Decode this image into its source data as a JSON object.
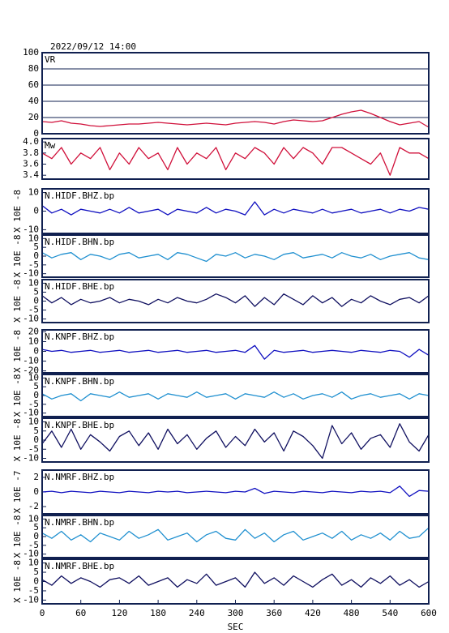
{
  "chart_data": [
    {
      "type": "line",
      "title": "2022/09/12 14:00",
      "label": "VR",
      "grid": true,
      "x": [
        0,
        15,
        30,
        45,
        60,
        75,
        90,
        105,
        120,
        135,
        150,
        165,
        180,
        195,
        210,
        225,
        240,
        255,
        270,
        285,
        300,
        315,
        330,
        345,
        360,
        375,
        390,
        405,
        420,
        435,
        450,
        465,
        480,
        495,
        510,
        525,
        540,
        555,
        570,
        585,
        600
      ],
      "series": [
        {
          "color": "#d0103a",
          "values": [
            15,
            14,
            16,
            13,
            12,
            10,
            9,
            10,
            11,
            12,
            12,
            13,
            14,
            13,
            12,
            11,
            12,
            13,
            12,
            11,
            13,
            14,
            15,
            14,
            12,
            15,
            17,
            16,
            15,
            16,
            20,
            24,
            27,
            29,
            25,
            20,
            15,
            11,
            13,
            15,
            8
          ]
        }
      ],
      "xlim": [
        0,
        600
      ],
      "ylim": [
        0,
        100
      ],
      "yticks": [
        0,
        20,
        40,
        60,
        80,
        100
      ]
    },
    {
      "type": "line",
      "label": "Mw",
      "x": [
        0,
        15,
        30,
        45,
        60,
        75,
        90,
        105,
        120,
        135,
        150,
        165,
        180,
        195,
        210,
        225,
        240,
        255,
        270,
        285,
        300,
        315,
        330,
        345,
        360,
        375,
        390,
        405,
        420,
        435,
        450,
        465,
        480,
        495,
        510,
        525,
        540,
        555,
        570,
        585,
        600
      ],
      "series": [
        {
          "color": "#d0103a",
          "values": [
            3.8,
            3.7,
            3.9,
            3.6,
            3.8,
            3.7,
            3.9,
            3.5,
            3.8,
            3.6,
            3.9,
            3.7,
            3.8,
            3.5,
            3.9,
            3.6,
            3.8,
            3.7,
            3.9,
            3.5,
            3.8,
            3.7,
            3.9,
            3.8,
            3.6,
            3.9,
            3.7,
            3.9,
            3.8,
            3.6,
            3.9,
            3.9,
            3.8,
            3.7,
            3.6,
            3.8,
            3.4,
            3.9,
            3.8,
            3.8,
            3.7
          ]
        }
      ],
      "xlim": [
        0,
        600
      ],
      "ylim": [
        3.33,
        4.06
      ],
      "yticks": [
        3.4,
        3.6,
        3.8,
        {
          "value": 4,
          "label": "4.0"
        }
      ]
    },
    {
      "type": "line",
      "label": "N.HIDF.BHZ.bp",
      "ylabel": "X 10E -8",
      "x": [
        0,
        15,
        30,
        45,
        60,
        75,
        90,
        105,
        120,
        135,
        150,
        165,
        180,
        195,
        210,
        225,
        240,
        255,
        270,
        285,
        300,
        315,
        330,
        345,
        360,
        375,
        390,
        405,
        420,
        435,
        450,
        465,
        480,
        495,
        510,
        525,
        540,
        555,
        570,
        585,
        600
      ],
      "series": [
        {
          "color": "#1010c0",
          "values": [
            3,
            -1,
            1,
            -2,
            1,
            0,
            -1,
            1,
            -1,
            2,
            -1,
            0,
            1,
            -2,
            1,
            0,
            -1,
            2,
            -1,
            1,
            0,
            -2,
            5,
            -2,
            1,
            -1,
            1,
            0,
            -1,
            1,
            -1,
            0,
            1,
            -1,
            0,
            1,
            -1,
            1,
            0,
            2,
            1
          ]
        }
      ],
      "xlim": [
        0,
        600
      ],
      "ylim": [
        -12,
        12
      ],
      "yticks": [
        -10,
        0,
        10
      ]
    },
    {
      "type": "line",
      "label": "N.HIDF.BHN.bp",
      "ylabel": "X 10E -8",
      "x": [
        0,
        15,
        30,
        45,
        60,
        75,
        90,
        105,
        120,
        135,
        150,
        165,
        180,
        195,
        210,
        225,
        240,
        255,
        270,
        285,
        300,
        315,
        330,
        345,
        360,
        375,
        390,
        405,
        420,
        435,
        450,
        465,
        480,
        495,
        510,
        525,
        540,
        555,
        570,
        585,
        600
      ],
      "series": [
        {
          "color": "#2090d0",
          "values": [
            2,
            -1,
            1,
            2,
            -2,
            1,
            0,
            -2,
            1,
            2,
            -1,
            0,
            1,
            -2,
            2,
            1,
            -1,
            -3,
            1,
            0,
            2,
            -1,
            1,
            0,
            -2,
            1,
            2,
            -1,
            0,
            1,
            -1,
            2,
            0,
            -1,
            1,
            -2,
            0,
            1,
            2,
            -1,
            -2
          ]
        }
      ],
      "xlim": [
        0,
        600
      ],
      "ylim": [
        -12,
        12
      ],
      "yticks": [
        -10,
        -5,
        0,
        5,
        10
      ]
    },
    {
      "type": "line",
      "label": "N.HIDF.BHE.bp",
      "ylabel": "X 10E -8",
      "x": [
        0,
        15,
        30,
        45,
        60,
        75,
        90,
        105,
        120,
        135,
        150,
        165,
        180,
        195,
        210,
        225,
        240,
        255,
        270,
        285,
        300,
        315,
        330,
        345,
        360,
        375,
        390,
        405,
        420,
        435,
        450,
        465,
        480,
        495,
        510,
        525,
        540,
        555,
        570,
        585,
        600
      ],
      "series": [
        {
          "color": "#101060",
          "values": [
            3,
            -1,
            2,
            -2,
            1,
            -1,
            0,
            2,
            -1,
            1,
            0,
            -2,
            1,
            -1,
            2,
            0,
            -1,
            1,
            4,
            2,
            -1,
            3,
            -3,
            2,
            -2,
            4,
            1,
            -2,
            3,
            -1,
            2,
            -3,
            1,
            -1,
            3,
            0,
            -2,
            1,
            2,
            -1,
            3
          ]
        }
      ],
      "xlim": [
        0,
        600
      ],
      "ylim": [
        -12,
        12
      ],
      "yticks": [
        -10,
        -5,
        0,
        5,
        10
      ]
    },
    {
      "type": "line",
      "label": "N.KNPF.BHZ.bp",
      "ylabel": "X 10E -8",
      "x": [
        0,
        15,
        30,
        45,
        60,
        75,
        90,
        105,
        120,
        135,
        150,
        165,
        180,
        195,
        210,
        225,
        240,
        255,
        270,
        285,
        300,
        315,
        330,
        345,
        360,
        375,
        390,
        405,
        420,
        435,
        450,
        465,
        480,
        495,
        510,
        525,
        540,
        555,
        570,
        585,
        600
      ],
      "series": [
        {
          "color": "#1010c0",
          "values": [
            2,
            0,
            1,
            -1,
            0,
            1,
            -1,
            0,
            1,
            -1,
            0,
            1,
            -1,
            0,
            1,
            -1,
            0,
            1,
            -1,
            0,
            1,
            -1,
            6,
            -8,
            1,
            -1,
            0,
            1,
            -1,
            0,
            1,
            0,
            -1,
            1,
            0,
            -1,
            1,
            0,
            -6,
            2,
            -4
          ]
        }
      ],
      "xlim": [
        0,
        600
      ],
      "ylim": [
        -22,
        22
      ],
      "yticks": [
        -20,
        -10,
        0,
        10,
        20
      ]
    },
    {
      "type": "line",
      "label": "N.KNPF.BHN.bp",
      "ylabel": "X 10E -8",
      "x": [
        0,
        15,
        30,
        45,
        60,
        75,
        90,
        105,
        120,
        135,
        150,
        165,
        180,
        195,
        210,
        225,
        240,
        255,
        270,
        285,
        300,
        315,
        330,
        345,
        360,
        375,
        390,
        405,
        420,
        435,
        450,
        465,
        480,
        495,
        510,
        525,
        540,
        555,
        570,
        585,
        600
      ],
      "series": [
        {
          "color": "#2090d0",
          "values": [
            1,
            -2,
            0,
            1,
            -3,
            1,
            0,
            -1,
            2,
            -1,
            0,
            1,
            -2,
            1,
            0,
            -1,
            2,
            -1,
            0,
            1,
            -2,
            1,
            0,
            -1,
            2,
            -1,
            1,
            -2,
            0,
            1,
            -1,
            2,
            -2,
            0,
            1,
            -1,
            0,
            1,
            -2,
            1,
            0
          ]
        }
      ],
      "xlim": [
        0,
        600
      ],
      "ylim": [
        -12,
        12
      ],
      "yticks": [
        -10,
        -5,
        0,
        5,
        10
      ]
    },
    {
      "type": "line",
      "label": "N.KNPF.BHE.bp",
      "ylabel": "X 10E -8",
      "x": [
        0,
        15,
        30,
        45,
        60,
        75,
        90,
        105,
        120,
        135,
        150,
        165,
        180,
        195,
        210,
        225,
        240,
        255,
        270,
        285,
        300,
        315,
        330,
        345,
        360,
        375,
        390,
        405,
        420,
        435,
        450,
        465,
        480,
        495,
        510,
        525,
        540,
        555,
        570,
        585,
        600
      ],
      "series": [
        {
          "color": "#101060",
          "values": [
            -2,
            5,
            -4,
            6,
            -5,
            3,
            -1,
            -6,
            2,
            5,
            -3,
            4,
            -5,
            6,
            -2,
            3,
            -5,
            1,
            5,
            -4,
            2,
            -3,
            6,
            -1,
            4,
            -6,
            5,
            2,
            -3,
            -10,
            8,
            -2,
            4,
            -5,
            1,
            3,
            -4,
            9,
            -1,
            -6,
            3
          ]
        }
      ],
      "xlim": [
        0,
        600
      ],
      "ylim": [
        -12,
        12
      ],
      "yticks": [
        -10,
        -5,
        0,
        5,
        10
      ]
    },
    {
      "type": "line",
      "label": "N.NMRF.BHZ.bp",
      "ylabel": "X 10E -7",
      "x": [
        0,
        15,
        30,
        45,
        60,
        75,
        90,
        105,
        120,
        135,
        150,
        165,
        180,
        195,
        210,
        225,
        240,
        255,
        270,
        285,
        300,
        315,
        330,
        345,
        360,
        375,
        390,
        405,
        420,
        435,
        450,
        465,
        480,
        495,
        510,
        525,
        540,
        555,
        570,
        585,
        600
      ],
      "series": [
        {
          "color": "#1010c0",
          "values": [
            0,
            0.1,
            -0.1,
            0.1,
            0,
            -0.1,
            0.1,
            0,
            -0.1,
            0.1,
            0,
            -0.1,
            0.1,
            0,
            0.1,
            -0.1,
            0,
            0.1,
            0,
            -0.1,
            0.1,
            0,
            0.5,
            -0.2,
            0.1,
            0,
            -0.1,
            0.1,
            0,
            -0.1,
            0.1,
            0,
            -0.1,
            0.1,
            0,
            0.1,
            -0.1,
            0.8,
            -0.6,
            0.2,
            0.1
          ]
        }
      ],
      "xlim": [
        0,
        600
      ],
      "ylim": [
        -3,
        3
      ],
      "yticks": [
        -2,
        0,
        2
      ]
    },
    {
      "type": "line",
      "label": "N.NMRF.BHN.bp",
      "ylabel": "X 10E -8",
      "x": [
        0,
        15,
        30,
        45,
        60,
        75,
        90,
        105,
        120,
        135,
        150,
        165,
        180,
        195,
        210,
        225,
        240,
        255,
        270,
        285,
        300,
        315,
        330,
        345,
        360,
        375,
        390,
        405,
        420,
        435,
        450,
        465,
        480,
        495,
        510,
        525,
        540,
        555,
        570,
        585,
        600
      ],
      "series": [
        {
          "color": "#2090d0",
          "values": [
            2,
            -1,
            3,
            -2,
            1,
            -3,
            2,
            0,
            -2,
            3,
            -1,
            1,
            4,
            -2,
            0,
            2,
            -3,
            1,
            3,
            -1,
            -2,
            4,
            -1,
            2,
            -3,
            1,
            3,
            -2,
            0,
            2,
            -1,
            3,
            -2,
            1,
            -1,
            2,
            -2,
            3,
            -1,
            0,
            5
          ]
        }
      ],
      "xlim": [
        0,
        600
      ],
      "ylim": [
        -12,
        12
      ],
      "yticks": [
        -10,
        -5,
        0,
        5,
        10
      ]
    },
    {
      "type": "line",
      "label": "N.NMRF.BHE.bp",
      "ylabel": "X 10E -8",
      "xlabel": "SEC",
      "x": [
        0,
        15,
        30,
        45,
        60,
        75,
        90,
        105,
        120,
        135,
        150,
        165,
        180,
        195,
        210,
        225,
        240,
        255,
        270,
        285,
        300,
        315,
        330,
        345,
        360,
        375,
        390,
        405,
        420,
        435,
        450,
        465,
        480,
        495,
        510,
        525,
        540,
        555,
        570,
        585,
        600
      ],
      "series": [
        {
          "color": "#101060",
          "values": [
            1,
            -2,
            3,
            -1,
            2,
            0,
            -3,
            1,
            2,
            -1,
            3,
            -2,
            0,
            2,
            -3,
            1,
            -1,
            4,
            -2,
            0,
            2,
            -3,
            5,
            -1,
            2,
            -2,
            3,
            0,
            -3,
            1,
            4,
            -2,
            1,
            -3,
            2,
            -1,
            3,
            -2,
            1,
            -3,
            0
          ]
        }
      ],
      "xlim": [
        0,
        600
      ],
      "ylim": [
        -12,
        12
      ],
      "yticks": [
        -10,
        -5,
        0,
        5,
        10
      ],
      "xticks": [
        0,
        60,
        120,
        180,
        240,
        300,
        360,
        420,
        480,
        540,
        600
      ]
    }
  ]
}
